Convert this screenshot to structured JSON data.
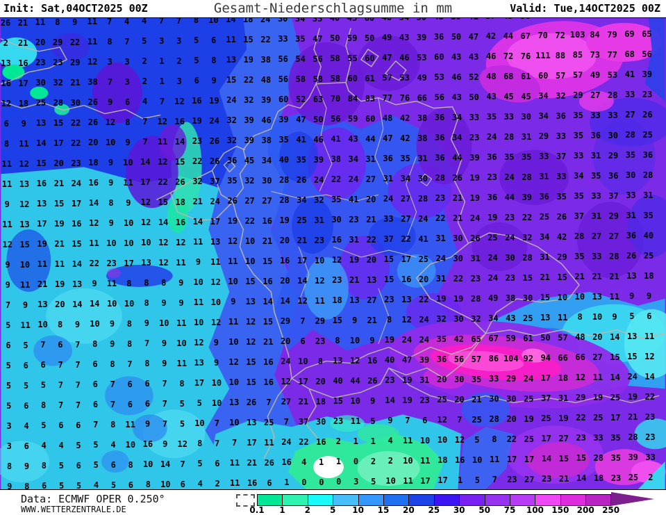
{
  "header": {
    "init": "Init: Sat,04OCT2025 00Z",
    "title": "Gesamt-Niederschlagsumme in mm",
    "valid": "Valid: Tue,14OCT2025 00Z"
  },
  "footer": {
    "source": "Data: ECMWF OPER 0.250°",
    "website": "WWW.WETTERZENTRALE.DE"
  },
  "scale": {
    "labels": [
      "0.1",
      "1",
      "2",
      "5",
      "10",
      "15",
      "20",
      "25",
      "30",
      "50",
      "75",
      "100",
      "150",
      "200",
      "250"
    ],
    "colors": [
      "#00E796",
      "#2FF2B0",
      "#19FAFA",
      "#47BEF7",
      "#3397FF",
      "#2070F2",
      "#1D42E8",
      "#3D14F2",
      "#7821F2",
      "#9632F0",
      "#B83BF7",
      "#EF49F7",
      "#DE2BDE",
      "#B824C4"
    ],
    "arrow_color": "#7E1F8F"
  },
  "map": {
    "units": "mm",
    "region": "Central Europe / Germany",
    "border_color": "#BDB6AA",
    "grid_rows": [
      "26 21 11 8 9 11 7 4 4 7 7 8 10 14 18 24 30 34 33 40 45 60 48 54 50 43 39 41 37 43 56 66 82 94 98 68 37 25",
      "2 21 20 29 22 11 8 7 5 3 3 5 6 11 15 22 33 35 47 50 59 50 49 43 39 36 50 47 42 44 67 70 72 103 84 79 69 65",
      "13 16 23 23 29 12 3 3 2 1 2 5 8 13 19 38 56 54 56 58 55 60 47 46 53 60 43 43 46 72 76 111 88 85 73 77 68 56",
      "16 17 30 32 21 38 7 3 2 1 3 6 9 15 22 48 56 58 58 58 60 61 57 53 49 53 46 52 48 68 61 60 57 57 49 53 41 39",
      "12 18 25 28 30 26 9 6 4 7 12 16 19 24 32 39 60 52 63 70 84 83 77 76 66 56 43 50 43 45 45 34 32 29 27 28 33 23",
      "6 9 13 15 22 26 12 8 7 12 16 19 24 32 39 46 39 47 50 56 59 60 48 42 38 36 34 33 35 33 30 34 36 35 33 33 27 26",
      "8 11 14 17 22 20 10 9 7 11 14 23 26 32 39 38 35 41 46 41 43 44 47 42 38 36 34 23 24 28 31 29 33 35 36 30 28 25",
      "11 12 15 20 23 18 9 10 14 12 15 22 26 36 45 34 40 35 39 38 34 31 36 35 31 36 44 39 36 35 35 33 37 33 31 29 35 36",
      "11 13 16 21 24 16 9 11 17 22 26 32 37 35 32 30 28 26 24 22 24 27 31 34 30 28 26 19 23 24 28 31 33 34 35 36 30 28",
      "9 12 13 15 17 14 8 9 12 15 18 21 24 26 27 27 28 34 32 35 41 20 24 27 28 23 21 19 36 44 39 36 35 35 33 37 33 31",
      "11 13 17 19 16 12 9 10 12 14 16 14 17 19 22 16 19 25 31 30 23 21 33 27 24 22 21 24 19 23 22 25 26 37 31 29 31 35",
      "12 15 19 21 15 11 10 10 10 12 12 11 13 12 10 21 20 21 23 16 31 22 37 22 41 31 30 26 25 24 32 34 42 28 27 27 36 40",
      "9 10 11 11 14 22 23 17 13 12 11 9 11 11 10 15 16 17 10 12 19 20 15 17 25 24 30 31 24 30 28 31 29 35 33 28 26 25",
      "9 11 21 19 13 9 11 8 8 8 9 10 12 10 15 16 20 14 12 23 21 13 15 16 20 31 22 23 24 23 15 21 15 21 21 21 13 18",
      "7 9 13 20 14 14 10 10 8 9 9 11 10 9 13 14 14 12 11 18 13 27 23 13 22 19 19 28 49 38 30 15 10 10 13 11 9 9",
      "5 11 10 8 9 10 9 8 9 10 11 10 12 11 12 15 29 7 29 15 9 21 8 12 24 32 30 32 34 43 25 13 11 8 10 9 5 6",
      "6 5 7 6 7 8 9 8 7 9 10 12 9 10 12 21 20 6 23 8 10 9 19 24 24 35 42 65 67 59 61 50 57 48 20 14 13 11",
      "5 6 6 7 7 6 8 7 8 9 11 13 9 12 15 16 24 10 8 13 12 16 40 47 39 36 56 57 86 104 92 94 66 66 27 15 15 12",
      "5 5 5 7 7 6 7 6 6 7 8 17 10 10 15 16 12 17 20 40 44 26 23 19 31 20 30 35 33 29 24 17 18 12 11 14 24 14",
      "5 6 8 7 7 6 7 6 6 7 5 5 10 13 26 7 27 21 18 15 10 9 14 19 23 25 20 21 30 30 25 37 31 29 19 25 19 22",
      "3 4 5 6 6 7 8 11 9 7 5 10 7 10 13 25 7 37 30 23 11 5 9 7 6 12 7 25 28 20 19 25 19 22 25 17 21 23",
      "3 6 4 4 5 5 4 10 16 9 12 8 7 7 17 11 24 22 16 2 1 1 4 11 10 10 12 5 8 22 25 17 27 23 33 35 28 23",
      "8 9 8 5 6 5 6 8 10 14 7 5 6 11 21 26 16 4 1 1 0 2 2 10 11 18 16 10 11 17 17 14 15 15 28 35 39 33",
      "9 8 6 5 5 4 5 6 8 10 6 4 2 11 16 6 1 0 0 0 3 5 10 11 17 17 1 5 7 23 27 23 21 14 18 23 25 2"
    ]
  },
  "palette": {
    "purple_base": "#7B2BE8",
    "dark_blue": "#1C3FE8",
    "cyan": "#2FC6EA",
    "green": "#2FE89C",
    "alps_magenta": "#F51EC8",
    "pink": "#F04FF0",
    "white_spot": "#FFFFFF"
  }
}
